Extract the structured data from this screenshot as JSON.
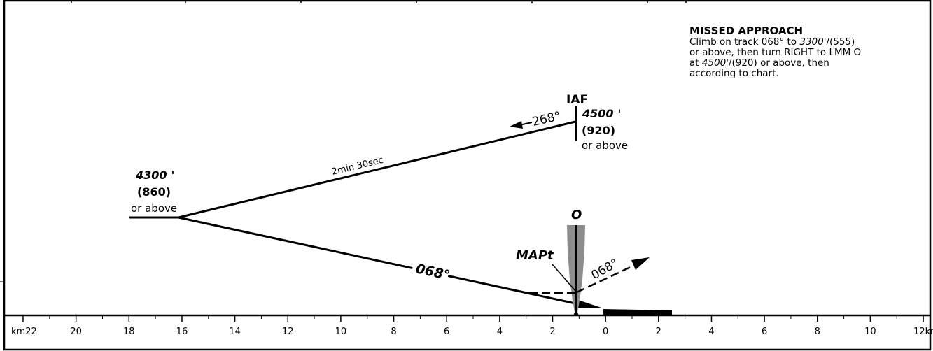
{
  "missed_approach": {
    "title": "MISSED APPROACH",
    "line1_a": "Climb on track 068° to ",
    "line1_alt": "3300",
    "line1_b": "'/(555)",
    "line2": "or above, then turn RIGHT to LMM O",
    "line3_a": "at ",
    "line3_alt": "4500",
    "line3_b": "'/(920) or above, then",
    "line4": "according to chart."
  },
  "iaf": {
    "label": "IAF",
    "altitude": "4500",
    "altitude_suffix": "'",
    "height": "(920)",
    "note": "or above",
    "track": "268°"
  },
  "left_fix": {
    "altitude": "4300",
    "altitude_suffix": "'",
    "height": "(860)",
    "note": "or above"
  },
  "segments": {
    "outbound_time": "2min 30sec",
    "inbound_track": "068°",
    "missed_track": "068°"
  },
  "markers": {
    "locator": "O",
    "mapt": "MAPt"
  },
  "scale": {
    "ticks": [
      "km22",
      "20",
      "18",
      "16",
      "14",
      "12",
      "10",
      "8",
      "6",
      "4",
      "2",
      "0",
      "2",
      "4",
      "6",
      "8",
      "10",
      "12km"
    ]
  },
  "colors": {
    "line": "#000000",
    "beam": "#8c8c8c"
  }
}
